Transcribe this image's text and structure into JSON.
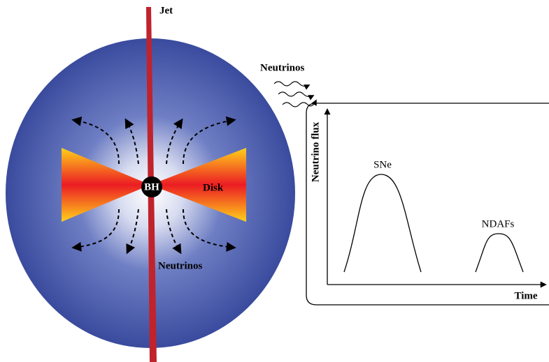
{
  "diagram": {
    "jet": "Jet",
    "outflow": "Neutrinos",
    "black_hole": "BH",
    "disk": "Disk",
    "inner_neutrinos": "Neutrinos"
  },
  "plot": {
    "y_label": "Neutrino flux",
    "x_label": "Time",
    "curves": [
      {
        "label": "SNe"
      },
      {
        "label": "NDAFs"
      }
    ]
  }
}
